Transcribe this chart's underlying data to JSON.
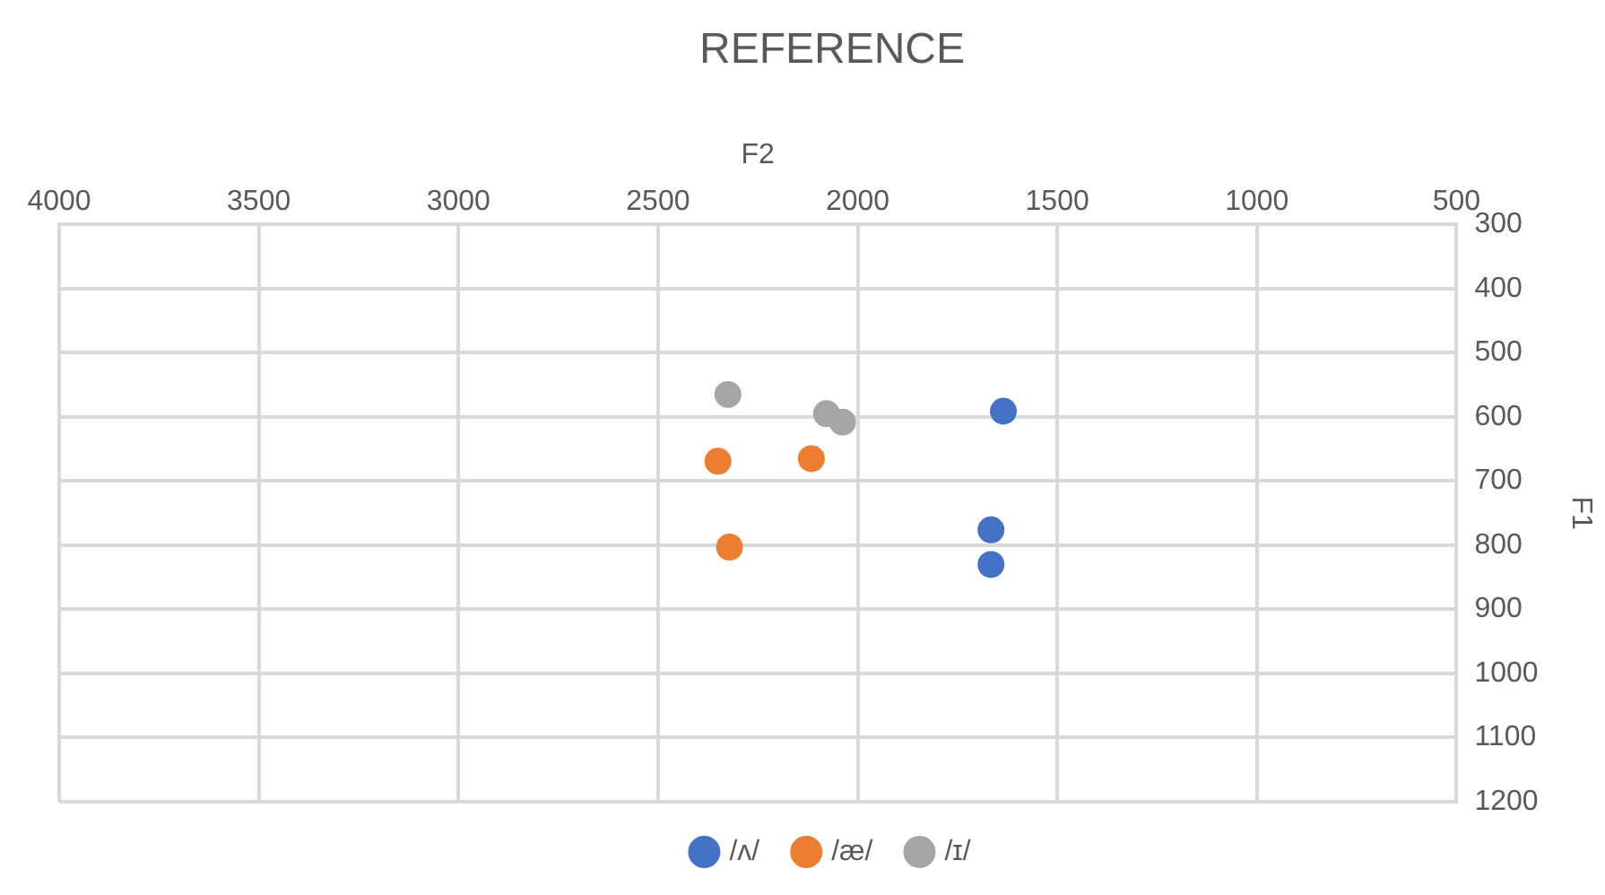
{
  "chart_data": {
    "type": "scatter",
    "title": "REFERENCE",
    "xlabel": "F2",
    "ylabel": "F1",
    "series": [
      {
        "name": "/ʌ/",
        "color": "#4472c4",
        "x": [
          1635,
          1666,
          1666
        ],
        "values": [
          591,
          776,
          830
        ]
      },
      {
        "name": "/æ/",
        "color": "#ed7d31",
        "x": [
          2350,
          2116,
          2321
        ],
        "values": [
          669,
          665,
          803
        ]
      },
      {
        "name": "/ɪ/",
        "color": "#a5a5a5",
        "x": [
          2325,
          2078,
          2038
        ],
        "values": [
          565,
          595,
          608
        ]
      }
    ],
    "xlim": [
      4000,
      500
    ],
    "xticks": [
      500,
      1000,
      1500,
      2000,
      2500,
      3000,
      3500,
      4000
    ],
    "ylim": [
      1200,
      300
    ],
    "yticks": [
      300,
      400,
      500,
      600,
      700,
      800,
      900,
      1000,
      1100,
      1200
    ],
    "grid": true,
    "legend": "bottom",
    "marker": "circle"
  }
}
